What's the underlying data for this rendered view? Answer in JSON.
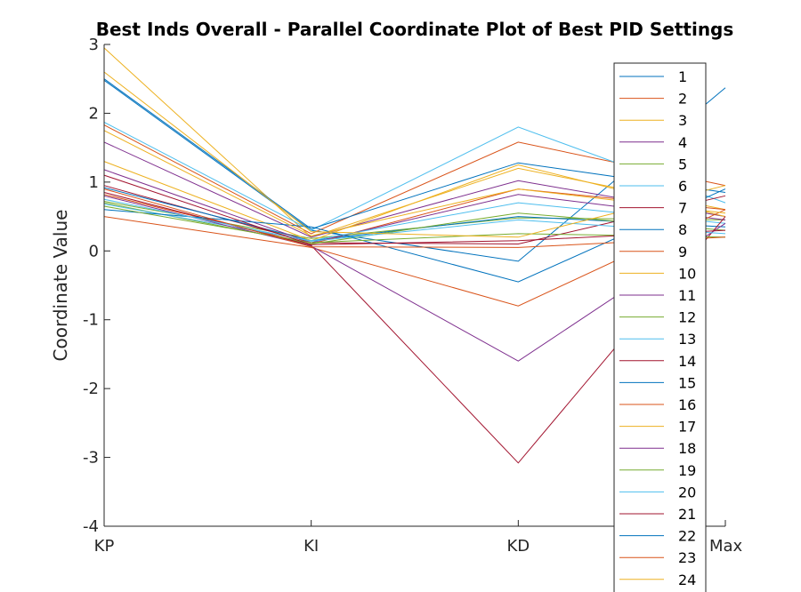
{
  "chart_data": {
    "type": "line",
    "title": "Best Inds Overall - Parallel Coordinate Plot of Best PID Settings",
    "ylabel": "Coordinate Value",
    "xlabel": "",
    "categories": [
      "KP",
      "KI",
      "KD",
      "Max"
    ],
    "ylim": [
      -4,
      3
    ],
    "yticks": [
      -4,
      -3,
      -2,
      -1,
      0,
      1,
      2,
      3
    ],
    "grid": false,
    "legend_position": "right",
    "colors": [
      "#0072BD",
      "#D95319",
      "#EDB120",
      "#7E2F8E",
      "#77AC30",
      "#4DBEEE",
      "#A2142F"
    ],
    "series": [
      {
        "name": "1",
        "values": [
          2.48,
          0.3,
          -0.15,
          2.37
        ]
      },
      {
        "name": "2",
        "values": [
          1.83,
          0.25,
          1.58,
          0.95
        ]
      },
      {
        "name": "3",
        "values": [
          2.95,
          0.2,
          1.2,
          0.6
        ]
      },
      {
        "name": "4",
        "values": [
          1.58,
          0.2,
          1.02,
          0.5
        ]
      },
      {
        "name": "5",
        "values": [
          0.72,
          0.18,
          0.48,
          0.45
        ]
      },
      {
        "name": "6",
        "values": [
          1.87,
          0.3,
          1.8,
          0.7
        ]
      },
      {
        "name": "7",
        "values": [
          0.95,
          0.12,
          0.1,
          0.8
        ]
      },
      {
        "name": "8",
        "values": [
          0.92,
          0.15,
          0.5,
          0.35
        ]
      },
      {
        "name": "9",
        "values": [
          0.82,
          0.1,
          0.9,
          0.6
        ]
      },
      {
        "name": "10",
        "values": [
          1.3,
          0.15,
          1.25,
          0.5
        ]
      },
      {
        "name": "11",
        "values": [
          1.18,
          0.12,
          0.82,
          0.45
        ]
      },
      {
        "name": "12",
        "values": [
          0.7,
          0.1,
          0.55,
          0.3
        ]
      },
      {
        "name": "13",
        "values": [
          0.68,
          0.15,
          0.7,
          0.4
        ]
      },
      {
        "name": "14",
        "values": [
          0.85,
          0.08,
          -3.08,
          0.5
        ]
      },
      {
        "name": "15",
        "values": [
          0.6,
          0.35,
          -0.45,
          0.9
        ]
      },
      {
        "name": "16",
        "values": [
          0.5,
          0.05,
          -0.8,
          0.6
        ]
      },
      {
        "name": "17",
        "values": [
          1.75,
          0.22,
          0.9,
          0.55
        ]
      },
      {
        "name": "18",
        "values": [
          0.8,
          0.07,
          -1.6,
          0.4
        ]
      },
      {
        "name": "19",
        "values": [
          0.65,
          0.12,
          0.25,
          0.2
        ]
      },
      {
        "name": "20",
        "values": [
          0.75,
          0.14,
          0.45,
          0.25
        ]
      },
      {
        "name": "21",
        "values": [
          1.1,
          0.09,
          0.15,
          0.3
        ]
      },
      {
        "name": "22",
        "values": [
          2.5,
          0.32,
          1.28,
          0.85
        ]
      },
      {
        "name": "23",
        "values": [
          0.9,
          0.06,
          0.05,
          0.2
        ]
      },
      {
        "name": "24",
        "values": [
          2.6,
          0.28,
          0.2,
          0.95
        ]
      }
    ]
  }
}
